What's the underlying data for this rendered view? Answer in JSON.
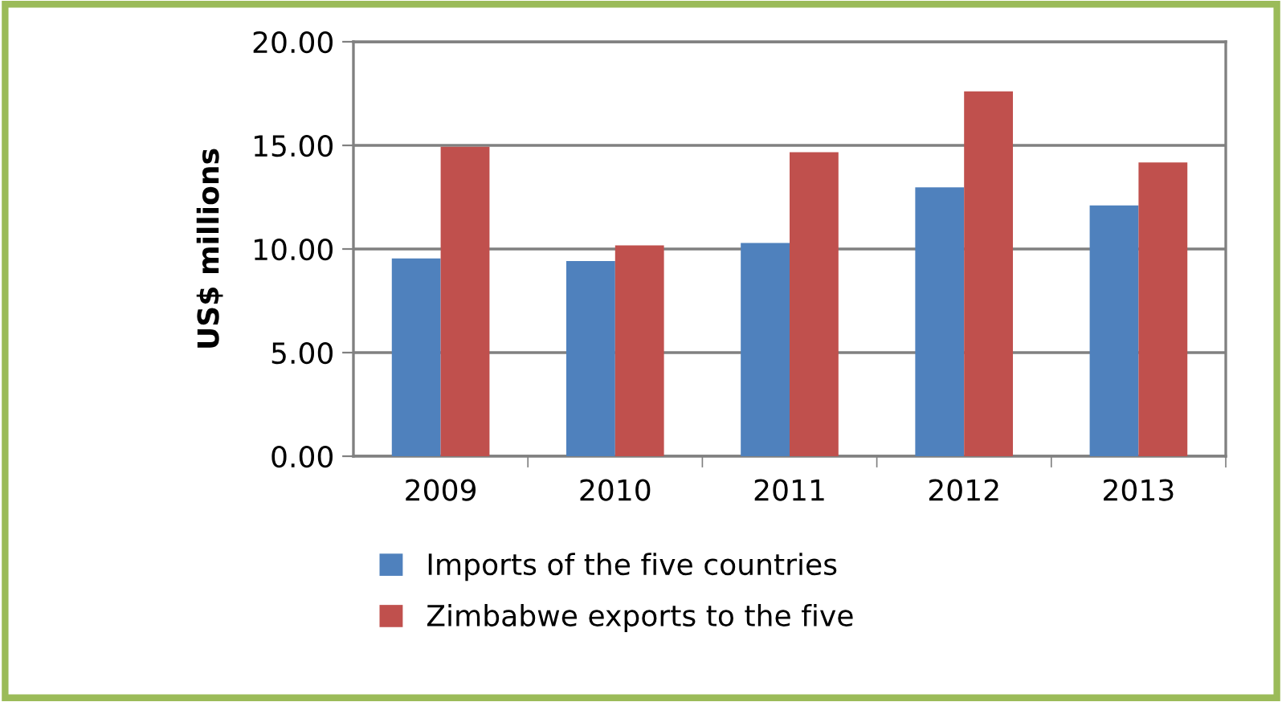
{
  "chart_data": {
    "type": "bar",
    "ylabel": "US$ millions",
    "categories": [
      "2009",
      "2010",
      "2011",
      "2012",
      "2013"
    ],
    "series": [
      {
        "name": "Imports of the five countries",
        "color": "#4f81bd",
        "values": [
          9.54,
          9.42,
          10.29,
          12.97,
          12.1
        ]
      },
      {
        "name": "Zimbabwe exports to the five",
        "color": "#c0504d",
        "values": [
          14.93,
          10.17,
          14.67,
          17.61,
          14.18
        ]
      }
    ],
    "ylim": [
      0,
      20
    ],
    "yticks": [
      {
        "value": 0,
        "label": "0.00"
      },
      {
        "value": 5,
        "label": "5.00"
      },
      {
        "value": 10,
        "label": "10.00"
      },
      {
        "value": 15,
        "label": "15.00"
      },
      {
        "value": 20,
        "label": "20.00"
      }
    ],
    "grid": "y",
    "legend": "bottom"
  }
}
